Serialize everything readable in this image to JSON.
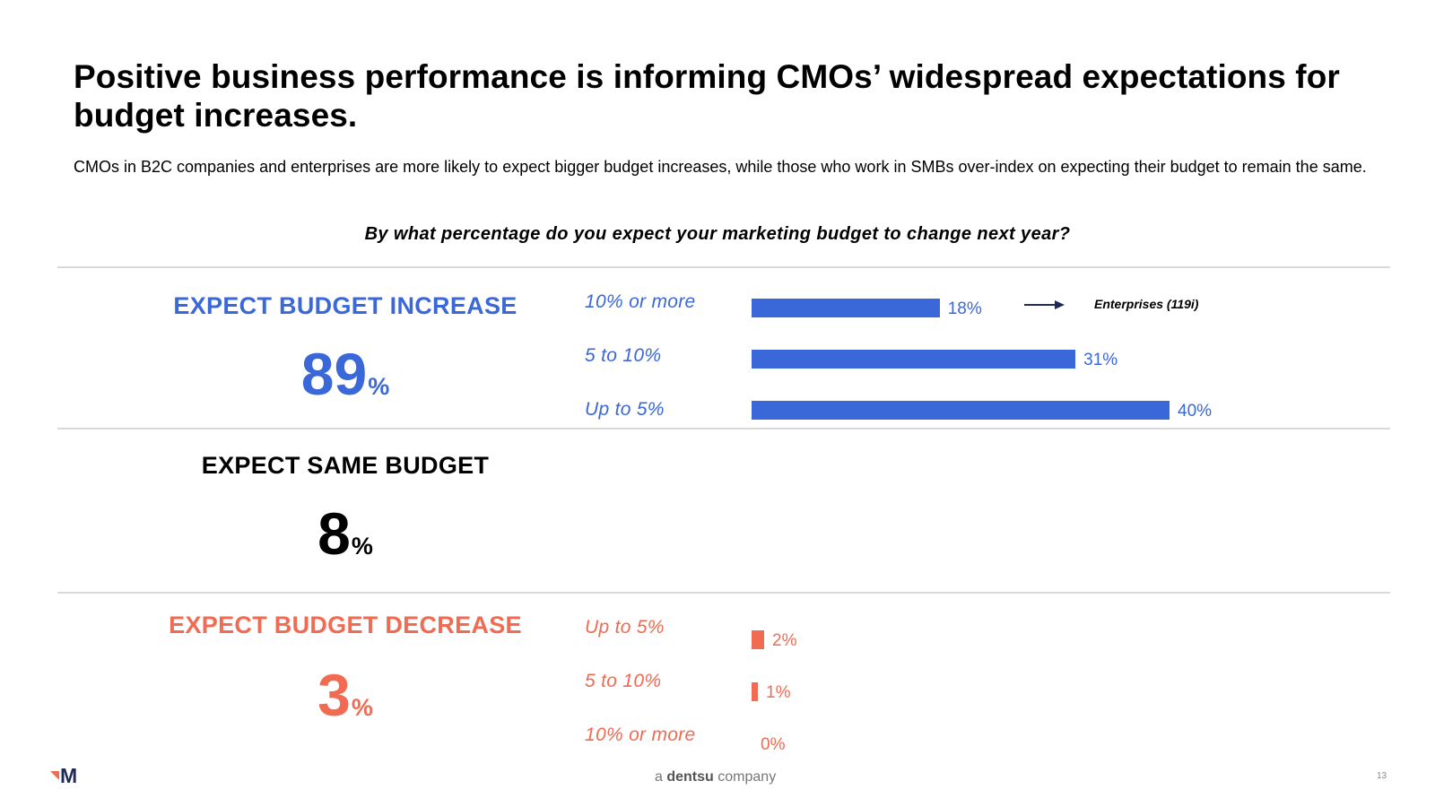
{
  "title": "Positive business performance is informing CMOs’ widespread expectations for budget increases.",
  "subtitle": "CMOs in B2C companies and enterprises are more likely to expect bigger budget increases, while those who work in SMBs over-index on expecting their budget to remain the same.",
  "question": "By what percentage do you expect your marketing budget to change next year?",
  "colors": {
    "increase": "#3b68d8",
    "decrease": "#f16a52",
    "same": "#000000"
  },
  "sections": {
    "increase": {
      "label": "EXPECT BUDGET INCREASE",
      "value": "89",
      "unit": "%"
    },
    "same": {
      "label": "EXPECT SAME BUDGET",
      "value": "8",
      "unit": "%"
    },
    "decrease": {
      "label": "EXPECT BUDGET DECREASE",
      "value": "3",
      "unit": "%"
    }
  },
  "annotation": {
    "text": "Enterprises (119i)",
    "icon": "arrow-right-icon"
  },
  "footer": {
    "prefix": "a",
    "brand": "dentsu",
    "suffix": "company"
  },
  "page_number": "13",
  "logo": {
    "icon": "merkle-logo-icon",
    "text": "M"
  },
  "chart_data": [
    {
      "type": "bar",
      "orientation": "horizontal",
      "name": "Expect budget increase",
      "categories": [
        "10% or more",
        "5 to 10%",
        "Up to 5%"
      ],
      "values": [
        18,
        31,
        40
      ],
      "labels": [
        "18%",
        "31%",
        "40%"
      ],
      "xlim": [
        0,
        40
      ]
    },
    {
      "type": "bar",
      "orientation": "horizontal",
      "name": "Expect budget decrease",
      "categories": [
        "Up to 5%",
        "5 to 10%",
        "10% or more"
      ],
      "values": [
        2,
        1,
        0
      ],
      "labels": [
        "2%",
        "1%",
        "0%"
      ],
      "xlim": [
        0,
        40
      ]
    }
  ]
}
